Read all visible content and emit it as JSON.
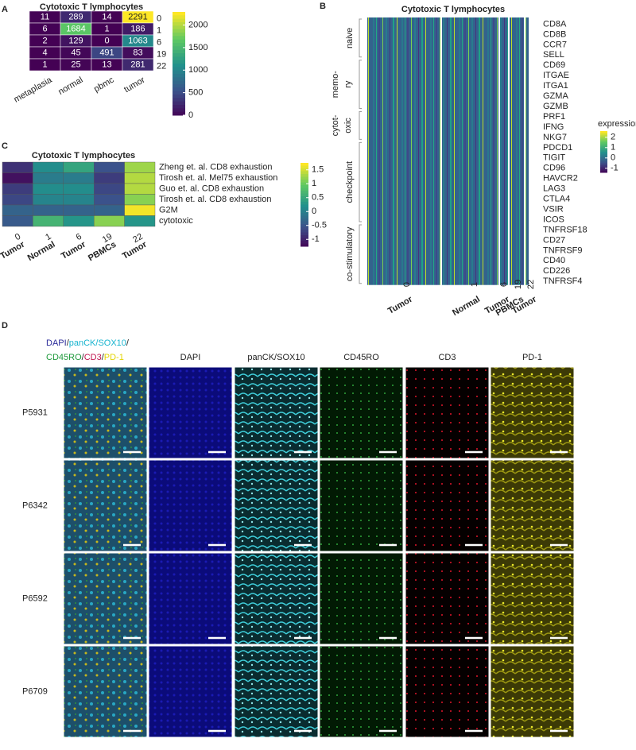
{
  "panel_labels": [
    "A",
    "B",
    "C",
    "D"
  ],
  "chart_data": [
    {
      "type": "heatmap",
      "title": "Cytotoxic T lymphocytes",
      "x": [
        "metaplasia",
        "normal",
        "pbmc",
        "tumor"
      ],
      "y": [
        "0",
        "1",
        "6",
        "19",
        "22"
      ],
      "values": [
        [
          11,
          289,
          14,
          2291
        ],
        [
          6,
          1684,
          1,
          186
        ],
        [
          2,
          129,
          0,
          1063
        ],
        [
          4,
          45,
          491,
          83
        ],
        [
          1,
          25,
          13,
          281
        ]
      ],
      "colorbar": {
        "lim": [
          0,
          2291
        ],
        "ticks": [
          0,
          500,
          1000,
          1500,
          2000
        ]
      }
    },
    {
      "type": "expression-heatmap",
      "title": "Cytotoxic T lymphocytes",
      "row_groups": [
        {
          "label": [
            "naive"
          ],
          "genes": [
            "CD8A",
            "CD8B",
            "CCR7",
            "SELL"
          ]
        },
        {
          "label": [
            "memo-",
            "ry"
          ],
          "genes": [
            "CD69",
            "ITGAE",
            "ITGA1",
            "GZMA",
            "GZMB"
          ]
        },
        {
          "label": [
            "cytot-",
            "oxic"
          ],
          "genes": [
            "PRF1",
            "IFNG",
            "NKG7"
          ]
        },
        {
          "label": [
            "checkpoint"
          ],
          "genes": [
            "PDCD1",
            "TIGIT",
            "CD96",
            "HAVCR2",
            "LAG3",
            "CTLA4",
            "VSIR",
            "ICOS"
          ]
        },
        {
          "label": [
            "co-stimulatory"
          ],
          "genes": [
            "TNFRSF18",
            "CD27",
            "TNFRSF9",
            "CD40",
            "CD226",
            "TNFRSF4"
          ]
        }
      ],
      "x_clusters": [
        "0",
        "1",
        "6",
        "19",
        "22"
      ],
      "x_groups": [
        "Tumor",
        "Normal",
        "Tumor",
        "PBMCs",
        "Tumor"
      ],
      "legend_title": "expression",
      "colorbar": {
        "lim": [
          -1.4,
          2.6
        ],
        "ticks": [
          2,
          1,
          0,
          -1
        ]
      }
    },
    {
      "type": "heatmap",
      "title": "Cytotoxic T lymphocytes",
      "x_clusters": [
        "0",
        "1",
        "6",
        "19",
        "22"
      ],
      "x_groups": [
        "Tumor",
        "Normal",
        "Tumor",
        "PBMCs",
        "Tumor"
      ],
      "rows": [
        "Zheng et. al. CD8 exhaustion",
        "Tirosh et. al.  Mel75 exhaustion",
        "Guo et. al. CD8 exhaustion",
        "Tirosh et. al.  CD8 exhaustion",
        "G2M",
        "cytotoxic"
      ],
      "values": [
        [
          -0.8,
          0.2,
          0.5,
          -0.5,
          1.3
        ],
        [
          -1.1,
          0,
          0,
          -0.7,
          1.4
        ],
        [
          -0.7,
          0.2,
          0.2,
          -0.6,
          1.4
        ],
        [
          -0.6,
          0.1,
          0.1,
          -0.5,
          1.2
        ],
        [
          -0.3,
          -0.3,
          -0.3,
          -0.3,
          1.7
        ],
        [
          -0.4,
          0.7,
          0.3,
          1.2,
          0.3
        ]
      ],
      "colorbar": {
        "lim": [
          -1.25,
          1.75
        ],
        "ticks": [
          1.5,
          1,
          0.5,
          0,
          -0.5,
          -1
        ]
      }
    }
  ],
  "imaging": {
    "merged_header": [
      [
        {
          "text": "DAPI",
          "color": "#2b2b9a"
        },
        {
          "text": "/",
          "color": "#222222"
        },
        {
          "text": "panCK/SOX10",
          "color": "#18b4cf"
        },
        {
          "text": "/",
          "color": "#222222"
        }
      ],
      [
        {
          "text": "CD45RO",
          "color": "#1f9a3c"
        },
        {
          "text": "/",
          "color": "#222222"
        },
        {
          "text": "CD3",
          "color": "#c0134e"
        },
        {
          "text": "/",
          "color": "#222222"
        },
        {
          "text": "PD-1",
          "color": "#e3d400"
        }
      ]
    ],
    "channels": [
      {
        "text": "DAPI",
        "color": "#2b2b9a"
      },
      {
        "text": "panCK/SOX10",
        "color": "#18b4cf"
      },
      {
        "text": "CD45RO",
        "color": "#1f9a3c"
      },
      {
        "text": "CD3",
        "color": "#c0134e"
      },
      {
        "text": "PD-1",
        "color": "#e3d400"
      }
    ],
    "samples": [
      "P5931",
      "P6342",
      "P6592",
      "P6709"
    ]
  }
}
